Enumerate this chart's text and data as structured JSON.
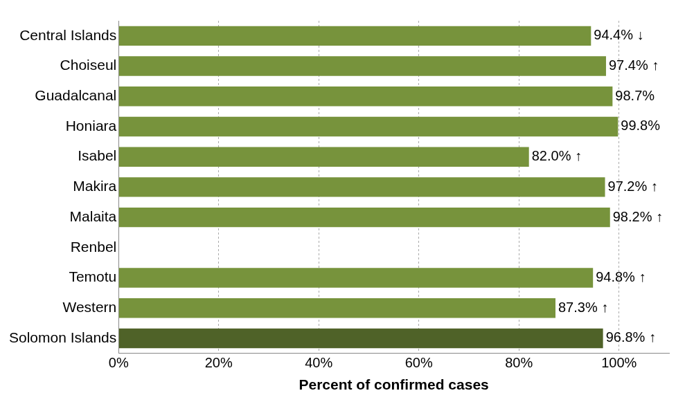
{
  "chart_data": {
    "type": "bar",
    "orientation": "horizontal",
    "xlabel": "Percent of confirmed cases",
    "categories": [
      "Central Islands",
      "Choiseul",
      "Guadalcanal",
      "Honiara",
      "Isabel",
      "Makira",
      "Malaita",
      "Renbel",
      "Temotu",
      "Western",
      "Solomon Islands"
    ],
    "values": [
      94.4,
      97.4,
      98.7,
      99.8,
      82.0,
      97.2,
      98.2,
      null,
      94.8,
      87.3,
      96.8
    ],
    "colors": [
      "#77933c",
      "#77933c",
      "#77933c",
      "#77933c",
      "#77933c",
      "#77933c",
      "#77933c",
      "#77933c",
      "#77933c",
      "#77933c",
      "#4f6228"
    ],
    "value_labels": [
      "94.4% ↓",
      "97.4% ↑",
      "98.7%",
      "99.8%",
      "82.0% ↑",
      "97.2% ↑",
      "98.2% ↑",
      null,
      "94.8% ↑",
      "87.3% ↑",
      "96.8% ↑"
    ],
    "xlim": [
      0,
      110
    ],
    "xticks": [
      {
        "value": 0,
        "label": "0%"
      },
      {
        "value": 20,
        "label": "20%"
      },
      {
        "value": 40,
        "label": "40%"
      },
      {
        "value": 60,
        "label": "60%"
      },
      {
        "value": 80,
        "label": "80%"
      },
      {
        "value": 100,
        "label": "100%"
      }
    ],
    "grid": "x",
    "legend": false
  }
}
